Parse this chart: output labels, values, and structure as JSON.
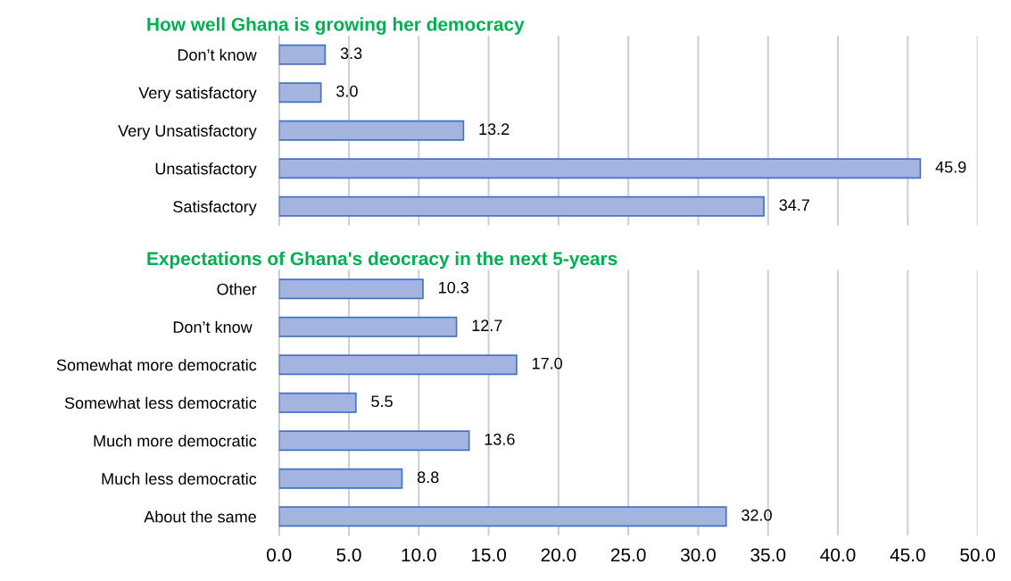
{
  "chart_data": [
    {
      "type": "bar",
      "orientation": "horizontal",
      "title": "How well Ghana is growing her democracy",
      "categories": [
        "Don’t know",
        "Very satisfactory",
        "Very Unsatisfactory",
        "Unsatisfactory",
        "Satisfactory"
      ],
      "values": [
        3.3,
        3.0,
        13.2,
        45.9,
        34.7
      ],
      "value_labels": [
        "3.3",
        "3.0",
        "13.2",
        "45.9",
        "34.7"
      ],
      "color": "#a3b4e0",
      "xlim": [
        0,
        50
      ],
      "xticks": [
        0,
        5,
        10,
        15,
        20,
        25,
        30,
        35,
        40,
        45,
        50
      ],
      "grid": "x",
      "tick_labels": "y"
    },
    {
      "type": "bar",
      "orientation": "horizontal",
      "title": "Expectations of Ghana's deocracy in the next 5-years",
      "categories": [
        "Other",
        "Don’t know ",
        "Somewhat more democratic",
        "Somewhat less democratic",
        "Much more democratic",
        "Much less democratic",
        "About the same"
      ],
      "values": [
        10.3,
        12.7,
        17.0,
        5.5,
        13.6,
        8.8,
        32.0
      ],
      "value_labels": [
        "10.3",
        "12.7",
        "17.0",
        "5.5",
        "13.6",
        "8.8",
        "32.0"
      ],
      "color": "#a3b4e0",
      "xlim": [
        0,
        50
      ],
      "xticks": [
        {
          "value": 0,
          "label": "0.0"
        },
        {
          "value": 5,
          "label": "5.0"
        },
        {
          "value": 10,
          "label": "10.0"
        },
        {
          "value": 15,
          "label": "15.0"
        },
        {
          "value": 20,
          "label": "20.0"
        },
        {
          "value": 25,
          "label": "25.0"
        },
        {
          "value": 30,
          "label": "30.0"
        },
        {
          "value": 35,
          "label": "35.0"
        },
        {
          "value": 40,
          "label": "40.0"
        },
        {
          "value": 45,
          "label": "45.0"
        },
        {
          "value": 50,
          "label": "50.0"
        }
      ],
      "grid": "x"
    }
  ]
}
